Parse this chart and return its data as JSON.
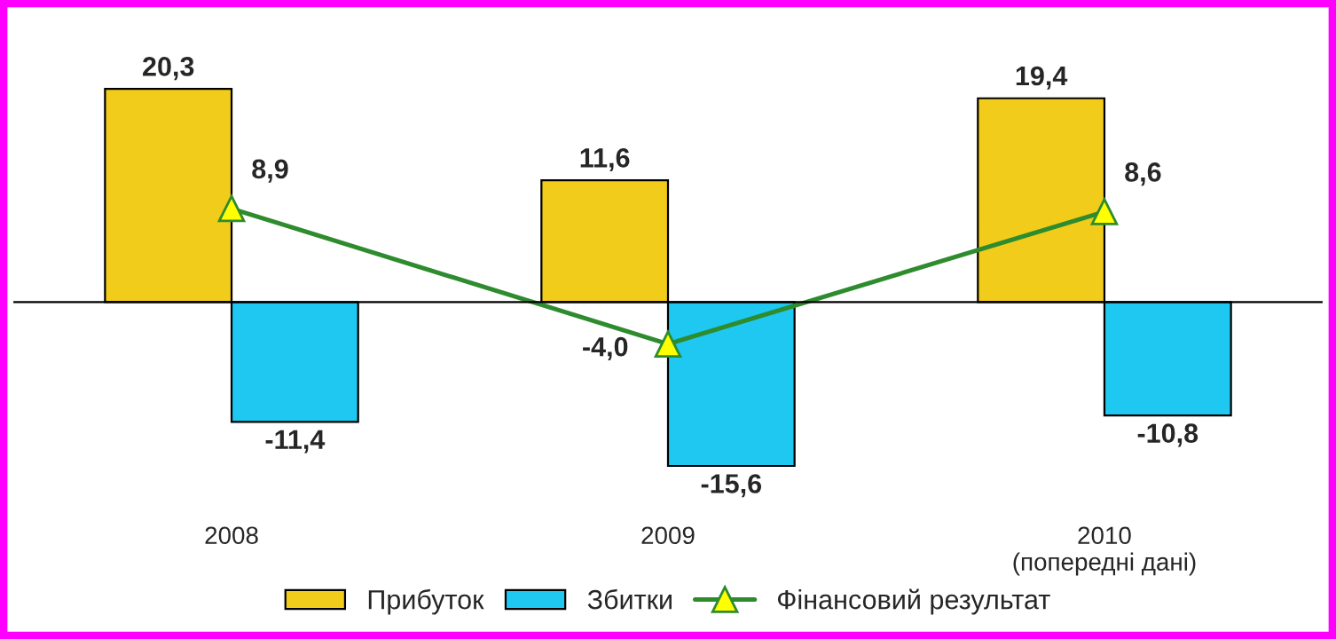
{
  "chart_data": {
    "type": "bar",
    "categories": [
      "2008",
      "2009",
      "2010\n(попередні дані)"
    ],
    "series": [
      {
        "name": "Прибуток",
        "color": "#f2cc1a",
        "values": [
          20.3,
          11.6,
          19.4
        ],
        "value_labels": [
          "20,3",
          "11,6",
          "19,4"
        ]
      },
      {
        "name": "Збитки",
        "color": "#1ec8f0",
        "values": [
          -11.4,
          -15.6,
          -10.8
        ],
        "value_labels": [
          "-11,4",
          "-15,6",
          "-10,8"
        ]
      },
      {
        "name": "Фінансовий результат",
        "type": "line",
        "color": "#2e8b2e",
        "marker": "triangle",
        "values": [
          8.9,
          -4.0,
          8.6
        ],
        "value_labels": [
          "8,9",
          "-4,0",
          "8,6"
        ]
      }
    ],
    "legend": "bottom",
    "grid": false
  }
}
